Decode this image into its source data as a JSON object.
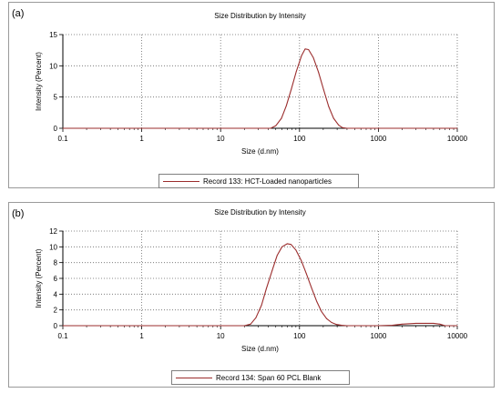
{
  "chart_data": [
    {
      "panel_label": "(a)",
      "type": "line",
      "title": "Size Distribution by Intensity",
      "xlabel": "Size (d.nm)",
      "ylabel": "Intensity (Percent)",
      "x_scale": "log",
      "xlim": [
        0.1,
        10000
      ],
      "ylim": [
        0,
        15
      ],
      "x_ticks": [
        "0.1",
        "1",
        "10",
        "100",
        "1000",
        "10000"
      ],
      "y_ticks": [
        "0",
        "5",
        "10",
        "15"
      ],
      "grid": true,
      "legend_position": "bottom",
      "line_color": "#9b2d2d",
      "series": [
        {
          "name": "Record 133: HCT-Loaded nanoparticles",
          "x": [
            0.1,
            43,
            50,
            59,
            68,
            79,
            91,
            106,
            118,
            130,
            150,
            174,
            202,
            234,
            270,
            314,
            350,
            400,
            10000
          ],
          "y": [
            0,
            0,
            0.4,
            1.6,
            3.6,
            6.3,
            9.1,
            11.6,
            12.7,
            12.6,
            11.3,
            9.0,
            6.2,
            3.5,
            1.6,
            0.5,
            0.1,
            0,
            0
          ]
        }
      ]
    },
    {
      "panel_label": "(b)",
      "type": "line",
      "title": "Size Distribution by Intensity",
      "xlabel": "Size (d.nm)",
      "ylabel": "Intensity (Percent)",
      "x_scale": "log",
      "xlim": [
        0.1,
        10000
      ],
      "ylim": [
        0,
        12
      ],
      "x_ticks": [
        "0.1",
        "1",
        "10",
        "100",
        "1000",
        "10000"
      ],
      "y_ticks": [
        "0",
        "2",
        "4",
        "6",
        "8",
        "10",
        "12"
      ],
      "grid": true,
      "legend_position": "bottom",
      "line_color": "#9b2d2d",
      "series": [
        {
          "name": "Record 134: Span 60 PCL Blank",
          "x": [
            0.1,
            20,
            24,
            28,
            33,
            38,
            45,
            52,
            60,
            70,
            78,
            90,
            105,
            122,
            142,
            165,
            190,
            220,
            255,
            295,
            342,
            400,
            460,
            1000,
            1500,
            2000,
            3000,
            4000,
            5000,
            6000,
            7000,
            10000
          ],
          "y": [
            0,
            0,
            0.2,
            1.0,
            2.6,
            4.7,
            7.0,
            8.9,
            10.0,
            10.4,
            10.3,
            9.6,
            8.3,
            6.6,
            4.8,
            3.1,
            1.8,
            0.9,
            0.4,
            0.15,
            0.05,
            0,
            0,
            0,
            0.05,
            0.2,
            0.3,
            0.3,
            0.3,
            0.2,
            0,
            0
          ]
        }
      ]
    }
  ]
}
